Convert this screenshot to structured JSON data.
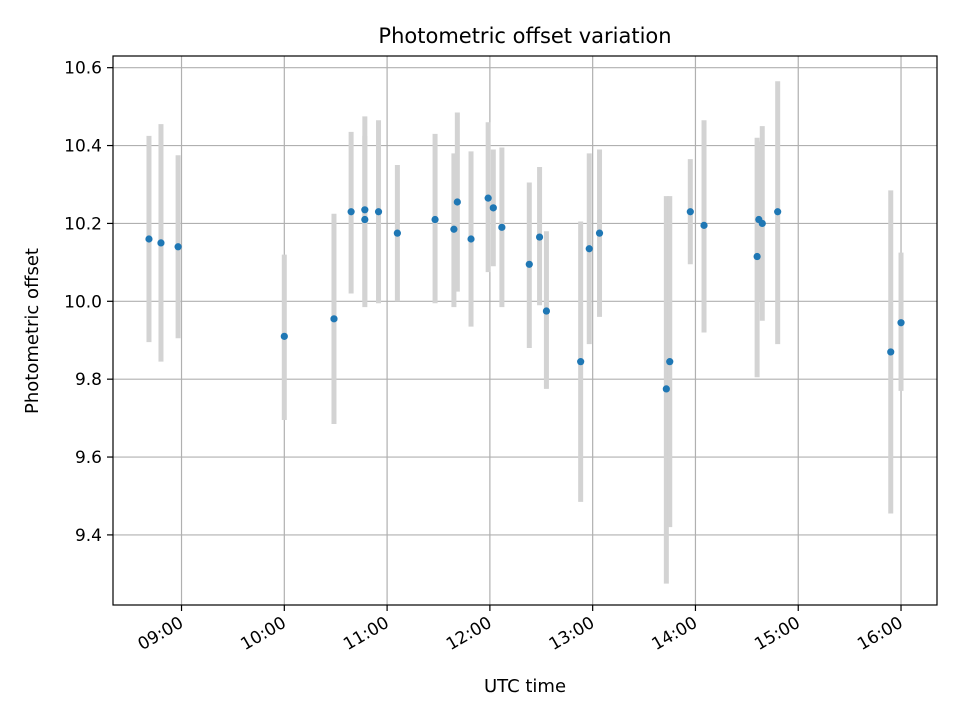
{
  "chart_data": {
    "type": "scatter",
    "title": "Photometric offset variation",
    "xlabel": "UTC time",
    "ylabel": "Photometric offset",
    "x_ticks": [
      "09:00",
      "10:00",
      "11:00",
      "12:00",
      "13:00",
      "14:00",
      "15:00",
      "16:00"
    ],
    "y_ticks": [
      "9.4",
      "9.6",
      "9.8",
      "10.0",
      "10.2",
      "10.4",
      "10.6"
    ],
    "xlim": [
      "08:20",
      "16:21"
    ],
    "ylim": [
      9.22,
      10.63
    ],
    "grid": true,
    "colors": {
      "point": "#1f77b4",
      "errorbar": "#d3d3d3",
      "grid": "#b0b0b0"
    },
    "points": [
      {
        "x": "08:41",
        "y": 10.16,
        "low": 9.895,
        "high": 10.425
      },
      {
        "x": "08:48",
        "y": 10.15,
        "low": 9.845,
        "high": 10.455
      },
      {
        "x": "08:58",
        "y": 10.14,
        "low": 9.905,
        "high": 10.375
      },
      {
        "x": "10:00",
        "y": 9.91,
        "low": 9.695,
        "high": 10.12
      },
      {
        "x": "10:29",
        "y": 9.955,
        "low": 9.685,
        "high": 10.225
      },
      {
        "x": "10:39",
        "y": 10.23,
        "low": 10.02,
        "high": 10.435
      },
      {
        "x": "10:47",
        "y": 10.21,
        "low": 9.985,
        "high": 10.425
      },
      {
        "x": "10:47",
        "y": 10.235,
        "low": 10.0,
        "high": 10.475
      },
      {
        "x": "10:55",
        "y": 10.23,
        "low": 9.995,
        "high": 10.465
      },
      {
        "x": "11:06",
        "y": 10.175,
        "low": 10.0,
        "high": 10.35
      },
      {
        "x": "11:28",
        "y": 10.21,
        "low": 9.995,
        "high": 10.43
      },
      {
        "x": "11:39",
        "y": 10.185,
        "low": 9.985,
        "high": 10.38
      },
      {
        "x": "11:41",
        "y": 10.255,
        "low": 10.025,
        "high": 10.485
      },
      {
        "x": "11:49",
        "y": 10.16,
        "low": 9.935,
        "high": 10.385
      },
      {
        "x": "11:59",
        "y": 10.265,
        "low": 10.075,
        "high": 10.46
      },
      {
        "x": "12:02",
        "y": 10.24,
        "low": 10.09,
        "high": 10.39
      },
      {
        "x": "12:07",
        "y": 10.19,
        "low": 9.985,
        "high": 10.395
      },
      {
        "x": "12:23",
        "y": 10.095,
        "low": 9.88,
        "high": 10.305
      },
      {
        "x": "12:29",
        "y": 10.165,
        "low": 9.99,
        "high": 10.345
      },
      {
        "x": "12:33",
        "y": 9.975,
        "low": 9.775,
        "high": 10.18
      },
      {
        "x": "12:53",
        "y": 9.845,
        "low": 9.485,
        "high": 10.205
      },
      {
        "x": "12:58",
        "y": 10.135,
        "low": 9.89,
        "high": 10.38
      },
      {
        "x": "13:04",
        "y": 10.175,
        "low": 9.96,
        "high": 10.39
      },
      {
        "x": "13:43",
        "y": 9.775,
        "low": 9.275,
        "high": 10.27
      },
      {
        "x": "13:45",
        "y": 9.845,
        "low": 9.42,
        "high": 10.27
      },
      {
        "x": "13:57",
        "y": 10.23,
        "low": 10.095,
        "high": 10.365
      },
      {
        "x": "14:05",
        "y": 10.195,
        "low": 9.92,
        "high": 10.465
      },
      {
        "x": "14:36",
        "y": 10.115,
        "low": 9.805,
        "high": 10.42
      },
      {
        "x": "14:37",
        "y": 10.21,
        "low": 10.0,
        "high": 10.41
      },
      {
        "x": "14:39",
        "y": 10.2,
        "low": 9.95,
        "high": 10.45
      },
      {
        "x": "14:48",
        "y": 10.23,
        "low": 9.89,
        "high": 10.565
      },
      {
        "x": "15:54",
        "y": 9.87,
        "low": 9.455,
        "high": 10.285
      },
      {
        "x": "16:00",
        "y": 9.945,
        "low": 9.77,
        "high": 10.125
      }
    ]
  }
}
